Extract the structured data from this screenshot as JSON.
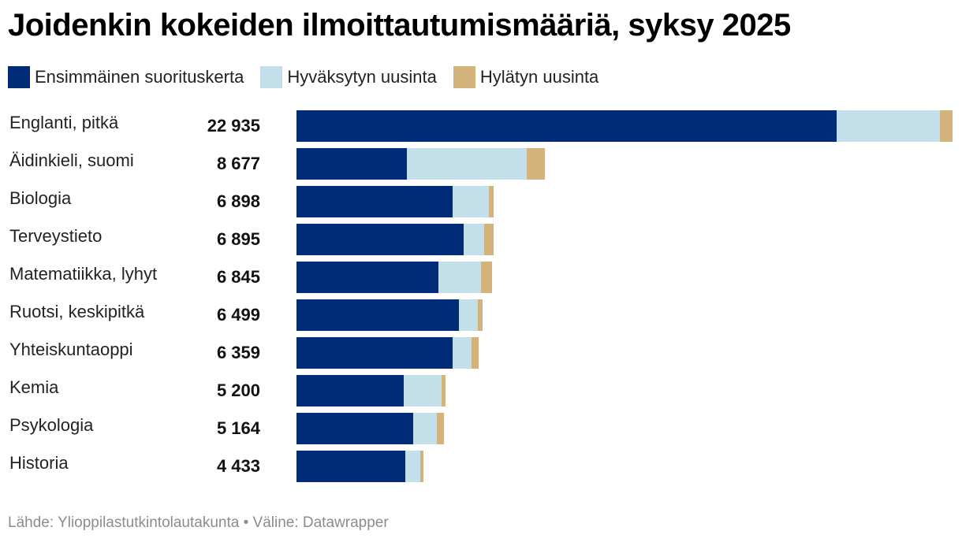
{
  "title": "Joidenkin kokeiden ilmoittautumismääriä, syksy 2025",
  "legend": [
    {
      "label": "Ensimmäinen suorituskerta",
      "color": "#002c77"
    },
    {
      "label": "Hyväksytyn uusinta",
      "color": "#c2dfea"
    },
    {
      "label": "Hylätyn uusinta",
      "color": "#d3b27b"
    }
  ],
  "source": "Lähde: Ylioppilastutkintolautakunta • Väline: Datawrapper",
  "chart_data": {
    "type": "bar",
    "orientation": "horizontal",
    "stacked": true,
    "title": "Joidenkin kokeiden ilmoittautumismääriä, syksy 2025",
    "categories": [
      "Englanti, pitkä",
      "Äidinkieli, suomi",
      "Biologia",
      "Terveystieto",
      "Matematiikka, lyhyt",
      "Ruotsi, keskipitkä",
      "Yhteiskuntaoppi",
      "Kemia",
      "Psykologia",
      "Historia"
    ],
    "totals": [
      "22 935",
      "8 677",
      "6 898",
      "6 895",
      "6 845",
      "6 499",
      "6 359",
      "5 200",
      "5 164",
      "4 433"
    ],
    "series": [
      {
        "name": "Ensimmäinen suorituskerta",
        "color": "#002c77",
        "values": [
          18870,
          3850,
          5460,
          5850,
          4960,
          5690,
          5460,
          3740,
          4070,
          3800
        ]
      },
      {
        "name": "Hyväksytyn uusinta",
        "color": "#c2dfea",
        "values": [
          3630,
          4200,
          1270,
          720,
          1490,
          660,
          670,
          1330,
          830,
          520
        ]
      },
      {
        "name": "Hylätyn uusinta",
        "color": "#d3b27b",
        "values": [
          435,
          627,
          168,
          325,
          395,
          149,
          229,
          130,
          264,
          113
        ]
      }
    ],
    "xlim": [
      0,
      22935
    ],
    "legend_position": "top",
    "grid": false
  }
}
